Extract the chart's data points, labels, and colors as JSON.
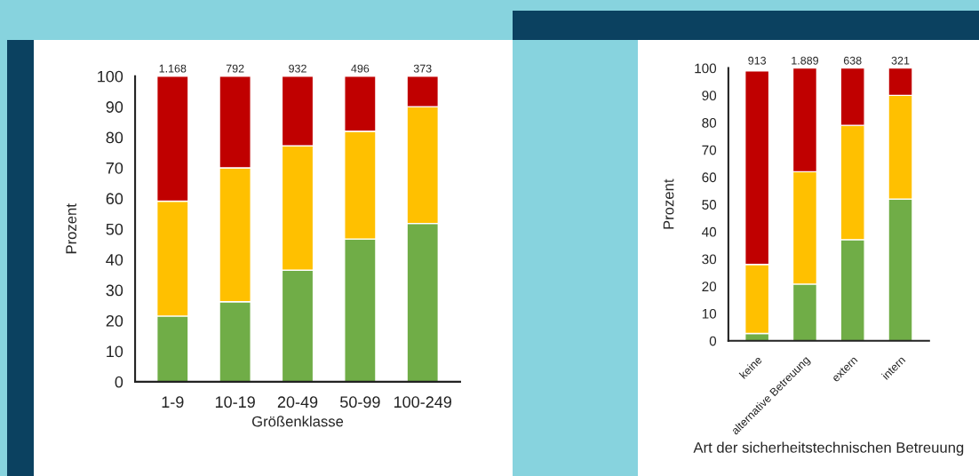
{
  "chart_data": [
    {
      "type": "bar",
      "stacked": true,
      "xlabel": "Größenklasse",
      "ylabel": "Prozent",
      "categories": [
        "1-9",
        "10-19",
        "20-49",
        "50-99",
        "100-249"
      ],
      "series": [
        {
          "color": "#70ad47",
          "values": [
            21.5,
            26.2,
            36.5,
            46.7,
            51.8
          ]
        },
        {
          "color": "#ffc000",
          "values": [
            37.6,
            43.8,
            40.7,
            35.3,
            38.2
          ]
        },
        {
          "color": "#c00000",
          "values": [
            40.9,
            30,
            22.8,
            18,
            10
          ]
        }
      ],
      "ylim": [
        0,
        100
      ],
      "yticks": [
        0,
        10,
        20,
        30,
        40,
        50,
        60,
        70,
        80,
        90,
        100
      ],
      "annotations": [
        "1.168",
        "792",
        "932",
        "496",
        "373"
      ]
    },
    {
      "type": "bar",
      "stacked": true,
      "xlabel": "Art der sicherheitstechnischen Betreuung",
      "ylabel": "Prozent",
      "categories": [
        "keine",
        "alternative Betreuung",
        "extern",
        "intern"
      ],
      "series": [
        {
          "color": "#70ad47",
          "values": [
            2.7,
            20.8,
            37.1,
            52
          ]
        },
        {
          "color": "#ffc000",
          "values": [
            25.3,
            41.2,
            41.9,
            38
          ]
        },
        {
          "color": "#c00000",
          "values": [
            71,
            38,
            21,
            10
          ]
        }
      ],
      "ylim": [
        0,
        100
      ],
      "yticks": [
        0,
        10,
        20,
        30,
        40,
        50,
        60,
        70,
        80,
        90,
        100
      ],
      "annotations": [
        "913",
        "1.889",
        "638",
        "321"
      ]
    }
  ]
}
